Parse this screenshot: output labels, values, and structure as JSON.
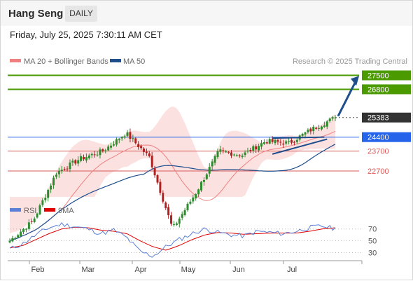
{
  "header": {
    "instrument": "Hang Seng",
    "timeframe": "DAILY",
    "datetime": "Friday, July 25, 2025 7:30:11 AM CET"
  },
  "legend": {
    "items": [
      {
        "label": "MA 20 + Bollinger Bands",
        "color": "#f08080"
      },
      {
        "label": "MA 50",
        "color": "#1f4e8c"
      }
    ],
    "credit": "Research © 2025 Trading Central"
  },
  "rsi_legend": {
    "items": [
      {
        "label": "RSI",
        "color": "#5b7fd6"
      },
      {
        "label": "9MA",
        "color": "#e00000"
      }
    ]
  },
  "colors": {
    "up_candle": "#2e8b2e",
    "down_candle": "#b02020",
    "target_green": "#4a9a00",
    "support_red": "#d65a5a",
    "pivot_blue": "#2563eb",
    "last_price": "#333333",
    "band_fill": "#fbd7d7",
    "ma20": "#f08080",
    "ma50": "#1f4e8c",
    "arrow": "#1f4e8c"
  },
  "chart_data": [
    {
      "type": "candlestick",
      "title": "Hang Seng DAILY",
      "x_ticks": [
        "Feb",
        "Mar",
        "Apr",
        "May",
        "Jun",
        "Jul"
      ],
      "y_range": [
        21400,
        27800
      ],
      "levels": [
        {
          "value": 27500,
          "label": "27500",
          "kind": "resistance"
        },
        {
          "value": 26800,
          "label": "26800",
          "kind": "resistance"
        },
        {
          "value": 25383,
          "label": "25383",
          "kind": "last"
        },
        {
          "value": 24400,
          "label": "24400",
          "kind": "pivot"
        },
        {
          "value": 23700,
          "label": "23700",
          "kind": "support"
        },
        {
          "value": 22700,
          "label": "22700",
          "kind": "support"
        }
      ],
      "overlays": [
        "MA 20 + Bollinger Bands",
        "MA 50"
      ],
      "trend": "bullish",
      "approx_path": [
        {
          "date": "Jan 13",
          "close": 19200
        },
        {
          "date": "Feb 3",
          "close": 20200
        },
        {
          "date": "Feb 14",
          "close": 22600
        },
        {
          "date": "Feb 24",
          "close": 23300
        },
        {
          "date": "Mar 10",
          "close": 23700
        },
        {
          "date": "Mar 19",
          "close": 24600
        },
        {
          "date": "Mar 28",
          "close": 23400
        },
        {
          "date": "Apr 7",
          "close": 19800
        },
        {
          "date": "Apr 22",
          "close": 21600
        },
        {
          "date": "May 13",
          "close": 23700
        },
        {
          "date": "Jun 3",
          "close": 23500
        },
        {
          "date": "Jun 24",
          "close": 24200
        },
        {
          "date": "Jul 10",
          "close": 24100
        },
        {
          "date": "Jul 18",
          "close": 24800
        },
        {
          "date": "Jul 24",
          "close": 25383
        }
      ]
    },
    {
      "type": "line",
      "title": "RSI",
      "y_ticks": [
        70,
        50,
        30
      ],
      "series": [
        {
          "name": "RSI",
          "approx_values": [
            36,
            45,
            60,
            72,
            78,
            74,
            70,
            62,
            68,
            55,
            32,
            24,
            40,
            52,
            62,
            70,
            64,
            60,
            58,
            66,
            64,
            62,
            66,
            72,
            75,
            70
          ]
        },
        {
          "name": "9MA",
          "approx_values": [
            38,
            42,
            52,
            62,
            70,
            73,
            72,
            68,
            66,
            62,
            50,
            40,
            34,
            42,
            52,
            60,
            64,
            63,
            61,
            62,
            63,
            63,
            63,
            66,
            70,
            72
          ]
        }
      ]
    }
  ]
}
